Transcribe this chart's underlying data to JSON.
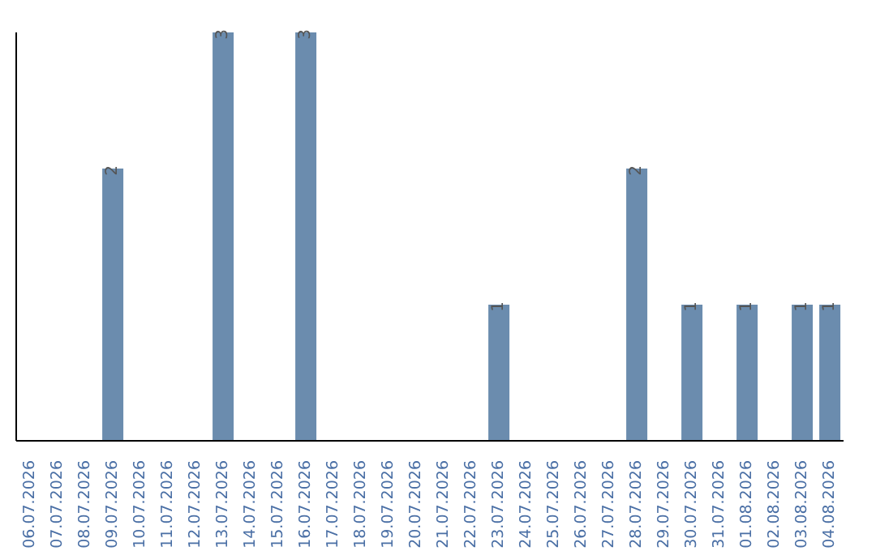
{
  "chart_data": {
    "type": "bar",
    "categories": [
      "06.07.2026",
      "07.07.2026",
      "08.07.2026",
      "09.07.2026",
      "10.07.2026",
      "11.07.2026",
      "12.07.2026",
      "13.07.2026",
      "14.07.2026",
      "15.07.2026",
      "16.07.2026",
      "17.07.2026",
      "18.07.2026",
      "19.07.2026",
      "20.07.2026",
      "21.07.2026",
      "22.07.2026",
      "23.07.2026",
      "24.07.2026",
      "25.07.2026",
      "26.07.2026",
      "27.07.2026",
      "28.07.2026",
      "29.07.2026",
      "30.07.2026",
      "31.07.2026",
      "01.08.2026",
      "02.08.2026",
      "03.08.2026",
      "04.08.2026"
    ],
    "values": [
      0,
      0,
      0,
      2,
      0,
      0,
      0,
      3,
      0,
      0,
      3,
      0,
      0,
      0,
      0,
      0,
      0,
      1,
      0,
      0,
      0,
      0,
      2,
      0,
      1,
      0,
      1,
      0,
      1,
      1
    ],
    "value_labels": [
      null,
      null,
      null,
      "2",
      null,
      null,
      null,
      "3",
      null,
      null,
      "3",
      null,
      null,
      null,
      null,
      null,
      null,
      "1",
      null,
      null,
      null,
      null,
      "2",
      null,
      "1",
      null,
      "1",
      null,
      "1",
      "1"
    ],
    "color": "#6b8cae",
    "ylim": [
      0,
      3
    ],
    "tick_labels": "x"
  }
}
